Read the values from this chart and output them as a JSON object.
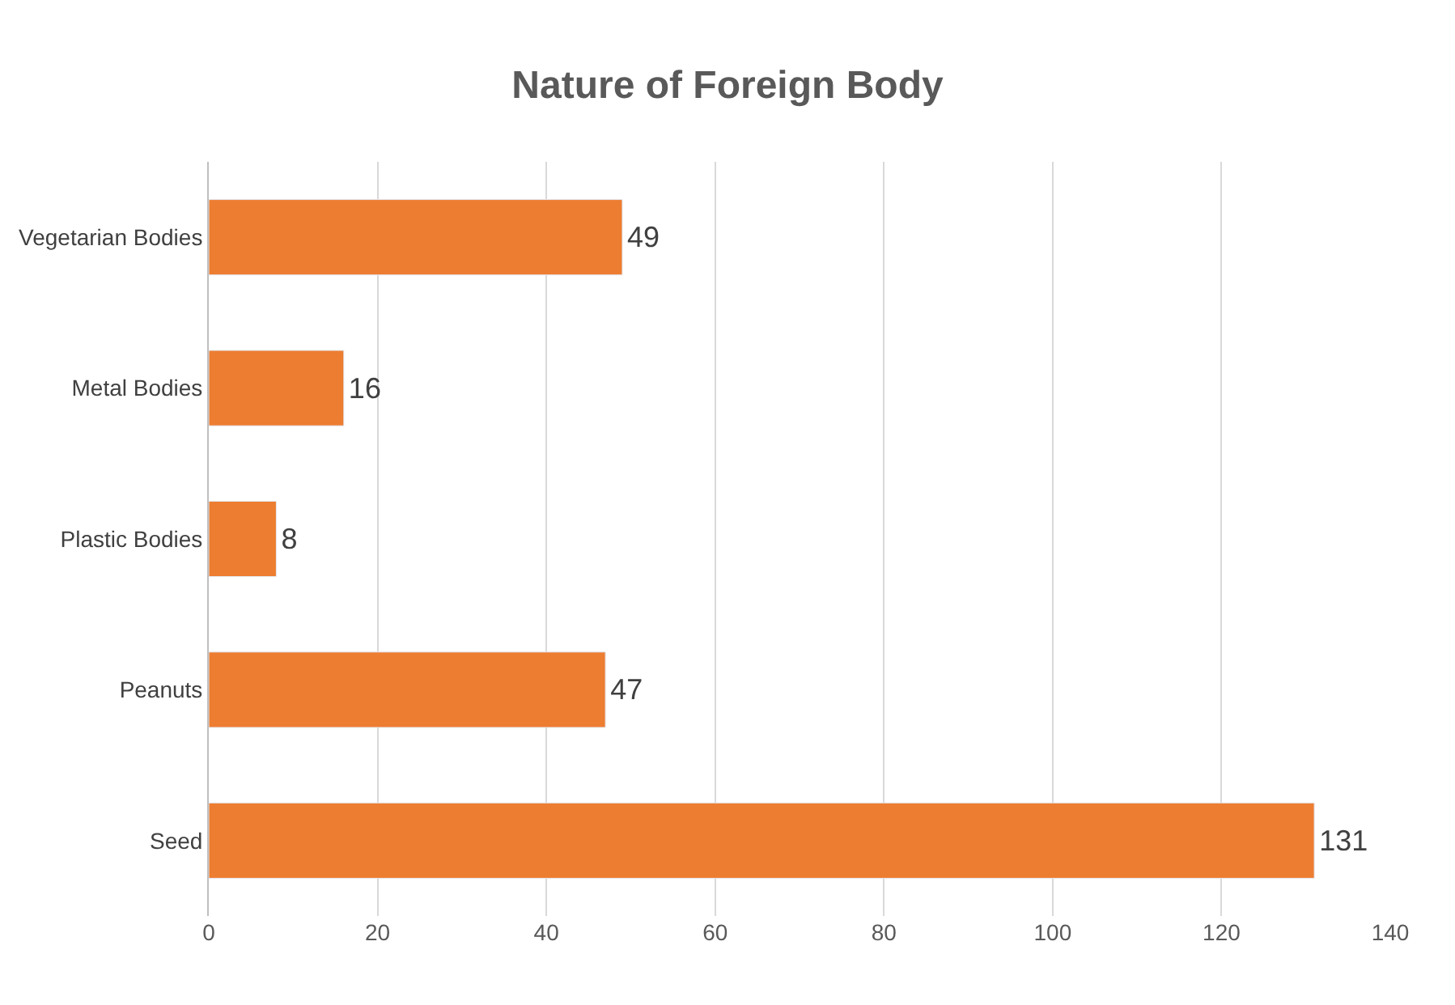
{
  "chart_data": {
    "type": "bar",
    "orientation": "horizontal",
    "title": "Nature of Foreign Body",
    "categories": [
      "Vegetarian Bodies",
      "Metal Bodies",
      "Plastic Bodies",
      "Peanuts",
      "Seed"
    ],
    "values": [
      49,
      16,
      8,
      47,
      131
    ],
    "color": "#ed7d31",
    "xlim": [
      0,
      140
    ],
    "xticks": [
      0,
      20,
      40,
      60,
      80,
      100,
      120,
      140
    ],
    "grid": "x",
    "data_labels": true
  }
}
